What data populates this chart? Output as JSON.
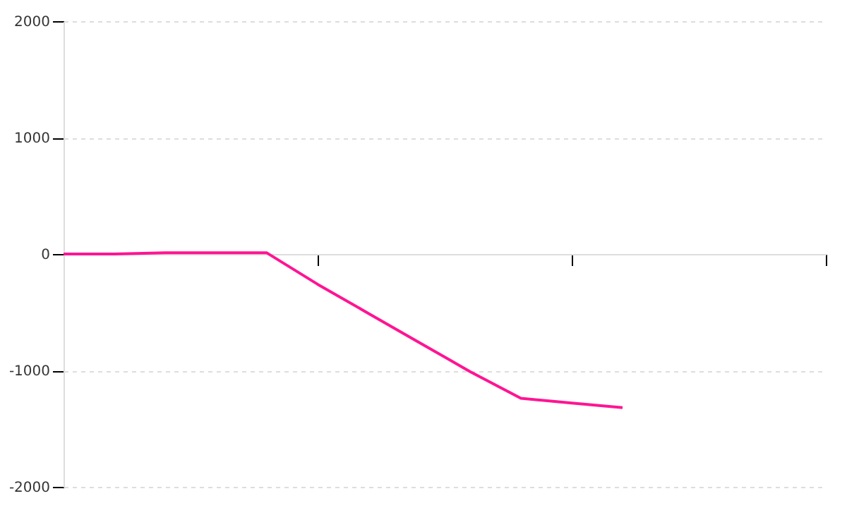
{
  "chart_data": {
    "type": "line",
    "categories": [
      null,
      null,
      null,
      null,
      null,
      null,
      null,
      null,
      null,
      null,
      null,
      null,
      null,
      null,
      null,
      null
    ],
    "series": [
      {
        "color": "#ff1493",
        "values": [
          0,
          0,
          10,
          10,
          10,
          -260,
          -510,
          -760,
          -1010,
          -1240,
          -1280,
          -1320,
          null,
          null,
          null,
          null
        ]
      }
    ],
    "ylim": [
      -2000,
      2000
    ],
    "yticks": [
      -2000,
      -1000,
      0,
      1000,
      2000
    ],
    "grid": "y",
    "tick_labels": "y",
    "line_style": "solid"
  }
}
